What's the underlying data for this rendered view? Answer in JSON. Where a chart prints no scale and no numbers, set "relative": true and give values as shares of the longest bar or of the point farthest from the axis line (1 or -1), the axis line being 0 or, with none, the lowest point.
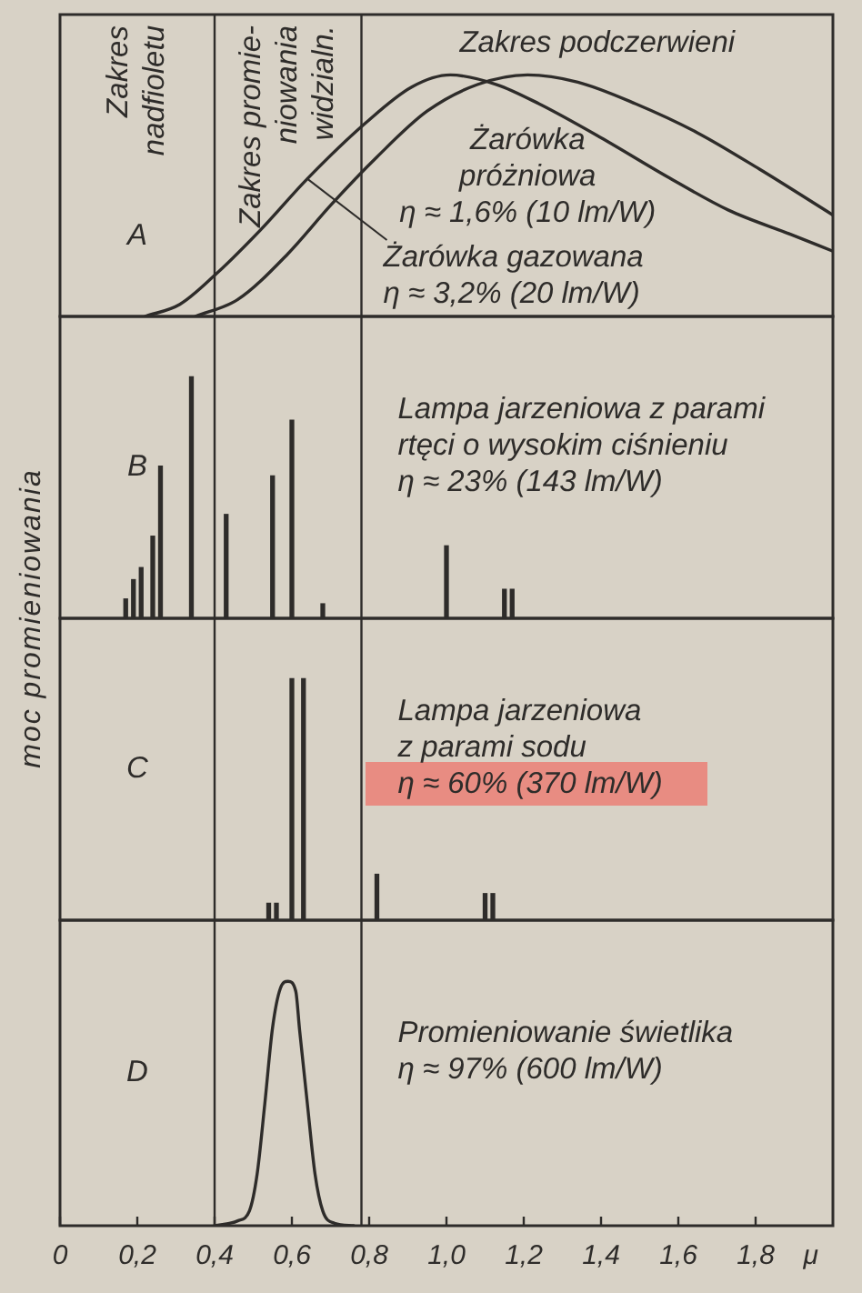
{
  "chart_data": [
    {
      "type": "line",
      "relative": true,
      "xlim": [
        0,
        2
      ],
      "tick_labels": false,
      "series": [
        {
          "name": "Żarówka\npróżniowa\nη ≈ 1,6% (10 lm/W)",
          "color": "#2e2c2a",
          "x": [
            0.35,
            0.46,
            0.59,
            0.7,
            0.82,
            0.95,
            1.08,
            1.21,
            1.34,
            1.49,
            1.65,
            1.81,
            2.0
          ],
          "values": [
            0,
            0.07,
            0.26,
            0.46,
            0.66,
            0.85,
            0.96,
            1.0,
            0.97,
            0.88,
            0.76,
            0.61,
            0.42
          ]
        },
        {
          "name": "Żarówka gazowana\nη ≈ 3,2% (20 lm/W)",
          "color": "#2e2c2a",
          "x": [
            0.22,
            0.31,
            0.4,
            0.52,
            0.64,
            0.79,
            0.91,
            1.01,
            1.13,
            1.24,
            1.4,
            1.57,
            1.73,
            1.89,
            2.0
          ],
          "values": [
            0,
            0.05,
            0.17,
            0.36,
            0.57,
            0.8,
            0.95,
            1.0,
            0.96,
            0.88,
            0.74,
            0.58,
            0.44,
            0.34,
            0.27
          ]
        }
      ],
      "ref_lines": [
        {
          "axis": "x",
          "value": 0.4
        },
        {
          "axis": "x",
          "value": 0.78
        }
      ],
      "annotations": [
        "A",
        "Zakres\nnadfioletu",
        "Zakres promie-\nniowania\nwidzialn.",
        "Zakres podczerwieni"
      ]
    },
    {
      "type": "bar",
      "relative": true,
      "xlim": [
        0,
        2
      ],
      "tick_labels": false,
      "title": "Lampa jarzeniowa z parami\nrtęci o wysokim ciśnieniu\nη ≈ 23% (143 lm/W)",
      "ylabel": "moc promieniowania",
      "color": "#2e2c2a",
      "x": [
        0.17,
        0.19,
        0.21,
        0.24,
        0.26,
        0.34,
        0.43,
        0.55,
        0.6,
        0.68,
        1.0,
        1.15,
        1.17
      ],
      "values": [
        0.08,
        0.16,
        0.21,
        0.34,
        0.63,
        1,
        0.43,
        0.59,
        0.82,
        0.06,
        0.3,
        0.12,
        0.12
      ],
      "ref_lines": [
        {
          "axis": "x",
          "value": 0.4
        },
        {
          "axis": "x",
          "value": 0.78
        }
      ],
      "annotations": [
        "B"
      ]
    },
    {
      "type": "bar",
      "relative": true,
      "xlim": [
        0,
        2
      ],
      "tick_labels": false,
      "title": "Lampa jarzeniowa\nz parami sodu\nη ≈ 60% (370 lm/W)",
      "color": "#2e2c2a",
      "x": [
        0.54,
        0.56,
        0.6,
        0.63,
        0.82,
        1.1,
        1.12
      ],
      "values": [
        0.07,
        0.07,
        1,
        1,
        0.19,
        0.11,
        0.11
      ],
      "ref_lines": [
        {
          "axis": "x",
          "value": 0.4
        },
        {
          "axis": "x",
          "value": 0.78
        }
      ],
      "annotations": [
        "C"
      ]
    },
    {
      "type": "line",
      "relative": true,
      "xlim": [
        0,
        2
      ],
      "tick_labels": "x",
      "xlabel": "μ",
      "title": "Promieniowanie świetlika\nη ≈ 97% (600 lm/W)",
      "color": "#2e2c2a",
      "xticks": [
        0,
        {
          "value": 0.2,
          "label": "0,2"
        },
        {
          "value": 0.4,
          "label": "0,4"
        },
        {
          "value": 0.6,
          "label": "0,6"
        },
        {
          "value": 0.8,
          "label": "0,8"
        },
        {
          "value": 1.0,
          "label": "1,0"
        },
        {
          "value": 1.2,
          "label": "1,2"
        },
        {
          "value": 1.4,
          "label": "1,4"
        },
        {
          "value": 1.6,
          "label": "1,6"
        },
        {
          "value": 1.8,
          "label": "1,8"
        }
      ],
      "x": [
        0.4,
        0.46,
        0.49,
        0.51,
        0.53,
        0.55,
        0.57,
        0.59,
        0.61,
        0.62,
        0.64,
        0.66,
        0.68,
        0.71,
        0.76
      ],
      "values": [
        0,
        0.02,
        0.06,
        0.21,
        0.5,
        0.81,
        0.97,
        1,
        0.96,
        0.8,
        0.5,
        0.21,
        0.06,
        0.01,
        0
      ],
      "ref_lines": [
        {
          "axis": "x",
          "value": 0.4
        },
        {
          "axis": "x",
          "value": 0.78
        }
      ],
      "annotations": [
        "D"
      ]
    }
  ]
}
